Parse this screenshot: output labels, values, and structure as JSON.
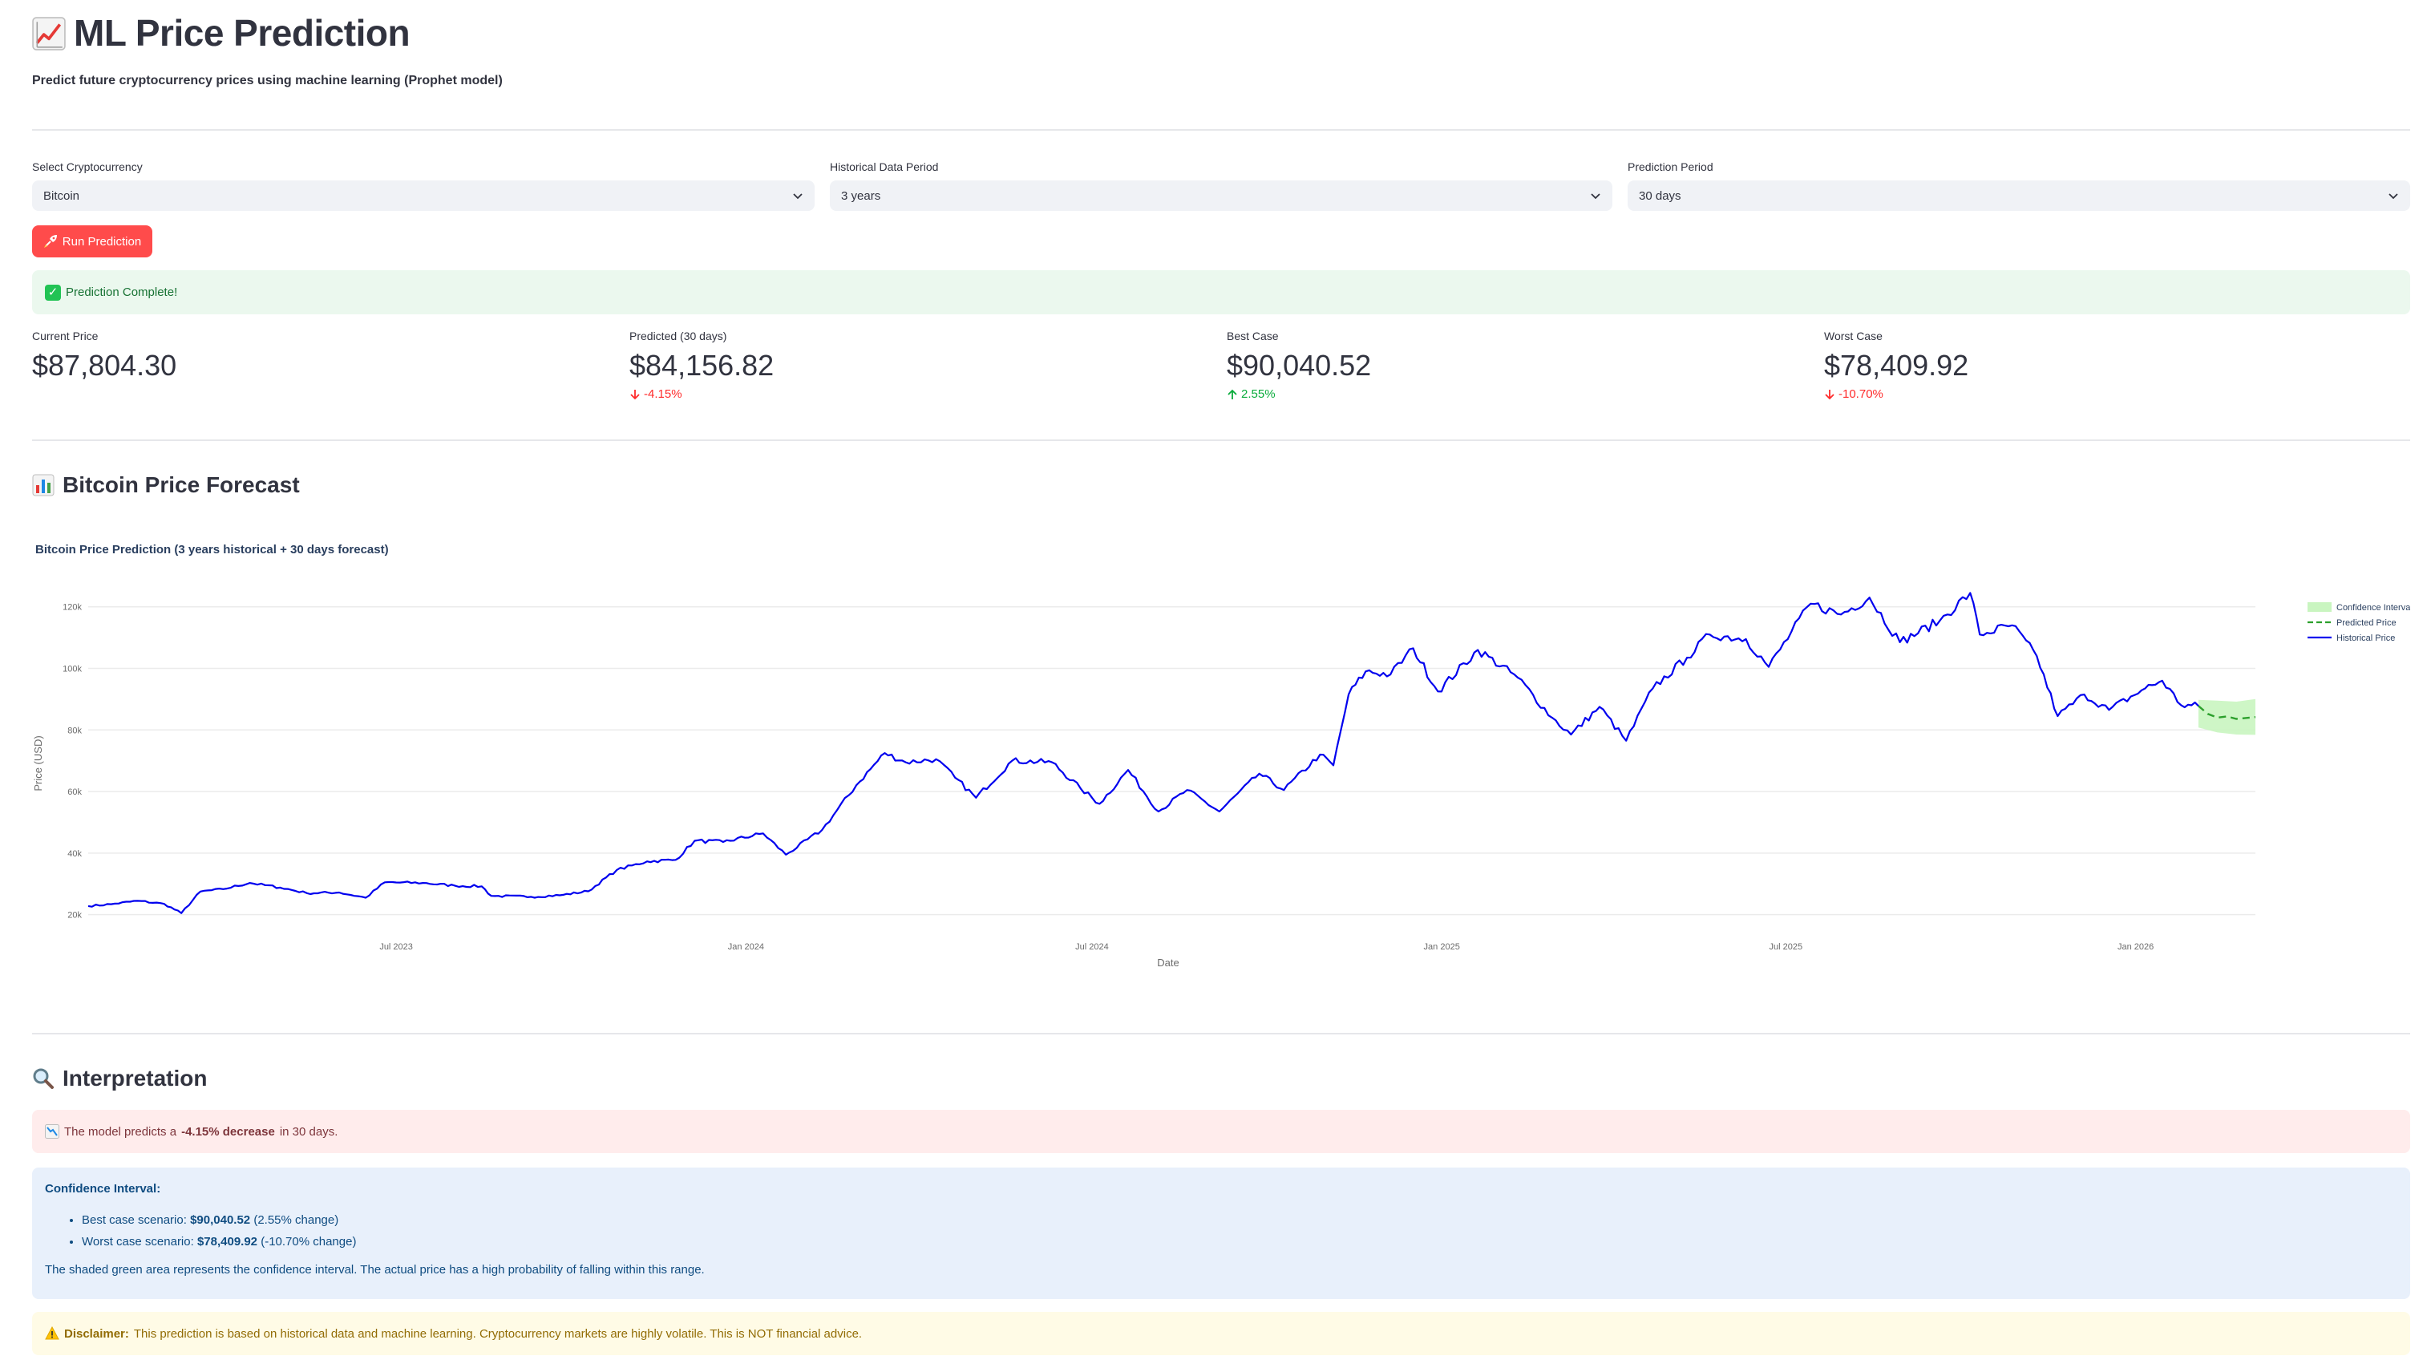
{
  "header": {
    "title": "ML Price Prediction",
    "title_icon": "chart-increasing-icon",
    "subtitle": "Predict future cryptocurrency prices using machine learning (Prophet model)"
  },
  "controls": {
    "crypto": {
      "label": "Select Cryptocurrency",
      "value": "Bitcoin"
    },
    "history": {
      "label": "Historical Data Period",
      "value": "3 years"
    },
    "horizon": {
      "label": "Prediction Period",
      "value": "30 days"
    },
    "run_label": "Run Prediction"
  },
  "status": {
    "success": "Prediction Complete!"
  },
  "metrics": [
    {
      "label": "Current Price",
      "value": "$87,804.30",
      "delta": ""
    },
    {
      "label": "Predicted (30 days)",
      "value": "$84,156.82",
      "delta": "-4.15%",
      "direction": "down"
    },
    {
      "label": "Best Case",
      "value": "$90,040.52",
      "delta": "2.55%",
      "direction": "up"
    },
    {
      "label": "Worst Case",
      "value": "$78,409.92",
      "delta": "-10.70%",
      "direction": "down"
    }
  ],
  "forecast_section": {
    "title": "Bitcoin Price Forecast"
  },
  "chart_data": {
    "type": "line",
    "title": "Bitcoin Price Prediction (3 years historical + 30 days forecast)",
    "xlabel": "Date",
    "ylabel": "Price (USD)",
    "xlim": [
      "2023-01-20",
      "2026-03-05"
    ],
    "ylim": [
      16000,
      128000
    ],
    "yticks": [
      20000,
      40000,
      60000,
      80000,
      100000,
      120000
    ],
    "ytick_labels": [
      "20k",
      "40k",
      "60k",
      "80k",
      "100k",
      "120k"
    ],
    "xticks": [
      "2023-07-01",
      "2024-01-01",
      "2024-07-01",
      "2025-01-01",
      "2025-07-01",
      "2026-01-01"
    ],
    "xtick_labels": [
      "Jul 2023",
      "Jan 2024",
      "Jul 2024",
      "Jan 2025",
      "Jul 2025",
      "Jan 2026"
    ],
    "grid": true,
    "legend_position": "top-right",
    "series": [
      {
        "name": "Historical Price",
        "color": "#0000ee",
        "points": [
          [
            "2023-01-20",
            22800
          ],
          [
            "2023-02-01",
            23400
          ],
          [
            "2023-02-15",
            24500
          ],
          [
            "2023-03-01",
            23500
          ],
          [
            "2023-03-10",
            20500
          ],
          [
            "2023-03-20",
            27500
          ],
          [
            "2023-04-01",
            28300
          ],
          [
            "2023-04-15",
            30300
          ],
          [
            "2023-05-01",
            28800
          ],
          [
            "2023-05-15",
            27000
          ],
          [
            "2023-06-01",
            27200
          ],
          [
            "2023-06-15",
            25500
          ],
          [
            "2023-06-25",
            30500
          ],
          [
            "2023-07-15",
            30300
          ],
          [
            "2023-08-01",
            29400
          ],
          [
            "2023-08-15",
            29200
          ],
          [
            "2023-08-20",
            26100
          ],
          [
            "2023-09-10",
            25800
          ],
          [
            "2023-09-25",
            26300
          ],
          [
            "2023-10-10",
            27600
          ],
          [
            "2023-10-25",
            34500
          ],
          [
            "2023-11-10",
            37300
          ],
          [
            "2023-11-25",
            37800
          ],
          [
            "2023-12-05",
            44000
          ],
          [
            "2023-12-20",
            43600
          ],
          [
            "2024-01-10",
            46400
          ],
          [
            "2024-01-22",
            39500
          ],
          [
            "2024-02-10",
            47500
          ],
          [
            "2024-02-28",
            62000
          ],
          [
            "2024-03-14",
            72500
          ],
          [
            "2024-03-25",
            69500
          ],
          [
            "2024-04-10",
            70500
          ],
          [
            "2024-04-20",
            64500
          ],
          [
            "2024-05-01",
            58000
          ],
          [
            "2024-05-20",
            70000
          ],
          [
            "2024-06-10",
            69500
          ],
          [
            "2024-06-25",
            61000
          ],
          [
            "2024-07-05",
            56000
          ],
          [
            "2024-07-20",
            67000
          ],
          [
            "2024-08-05",
            53500
          ],
          [
            "2024-08-20",
            60500
          ],
          [
            "2024-09-06",
            53500
          ],
          [
            "2024-09-27",
            65800
          ],
          [
            "2024-10-10",
            60500
          ],
          [
            "2024-10-29",
            72000
          ],
          [
            "2024-11-05",
            68500
          ],
          [
            "2024-11-13",
            91500
          ],
          [
            "2024-11-22",
            99000
          ],
          [
            "2024-12-05",
            98000
          ],
          [
            "2024-12-17",
            106500
          ],
          [
            "2024-12-30",
            92500
          ],
          [
            "2025-01-20",
            106000
          ],
          [
            "2025-02-10",
            97000
          ],
          [
            "2025-02-28",
            84000
          ],
          [
            "2025-03-10",
            78500
          ],
          [
            "2025-03-25",
            87500
          ],
          [
            "2025-04-08",
            76500
          ],
          [
            "2025-04-22",
            93500
          ],
          [
            "2025-05-10",
            103500
          ],
          [
            "2025-05-22",
            111000
          ],
          [
            "2025-06-10",
            109500
          ],
          [
            "2025-06-22",
            100500
          ],
          [
            "2025-07-14",
            121000
          ],
          [
            "2025-07-30",
            117500
          ],
          [
            "2025-08-14",
            123000
          ],
          [
            "2025-08-30",
            108500
          ],
          [
            "2025-09-20",
            115500
          ],
          [
            "2025-10-06",
            124500
          ],
          [
            "2025-10-11",
            111000
          ],
          [
            "2025-10-28",
            114000
          ],
          [
            "2025-11-10",
            104000
          ],
          [
            "2025-11-21",
            84500
          ],
          [
            "2025-12-05",
            91500
          ],
          [
            "2025-12-18",
            86500
          ],
          [
            "2026-01-06",
            93500
          ],
          [
            "2026-01-15",
            96000
          ],
          [
            "2026-01-25",
            88000
          ],
          [
            "2026-02-03",
            87800
          ]
        ]
      },
      {
        "name": "Predicted Price",
        "color": "#2ca02c",
        "points": [
          [
            "2026-02-03",
            87800
          ],
          [
            "2026-02-08",
            85200
          ],
          [
            "2026-02-13",
            84000
          ],
          [
            "2026-02-18",
            84400
          ],
          [
            "2026-02-23",
            83600
          ],
          [
            "2026-03-05",
            84200
          ]
        ]
      }
    ],
    "confidence_interval": {
      "name": "Confidence Interval",
      "color": "#c9f5c0",
      "x": [
        "2026-02-03",
        "2026-02-13",
        "2026-02-23",
        "2026-03-05"
      ],
      "upper": [
        89800,
        89500,
        89200,
        90040
      ],
      "lower": [
        80800,
        79200,
        78500,
        78409
      ]
    }
  },
  "interpretation": {
    "title": "Interpretation",
    "summary_prefix": "The model predicts a",
    "summary_value": "-4.15% decrease",
    "summary_suffix": "in 30 days.",
    "ci_title": "Confidence Interval:",
    "best_label": "Best case scenario:",
    "best_value": "$90,040.52",
    "best_change": "(2.55% change)",
    "worst_label": "Worst case scenario:",
    "worst_value": "$78,409.92",
    "worst_change": "(-10.70% change)",
    "ci_note": "The shaded green area represents the confidence interval. The actual price has a high probability of falling within this range.",
    "disclaimer_label": "Disclaimer:",
    "disclaimer_text": "This prediction is based on historical data and machine learning. Cryptocurrency markets are highly volatile. This is NOT financial advice."
  }
}
